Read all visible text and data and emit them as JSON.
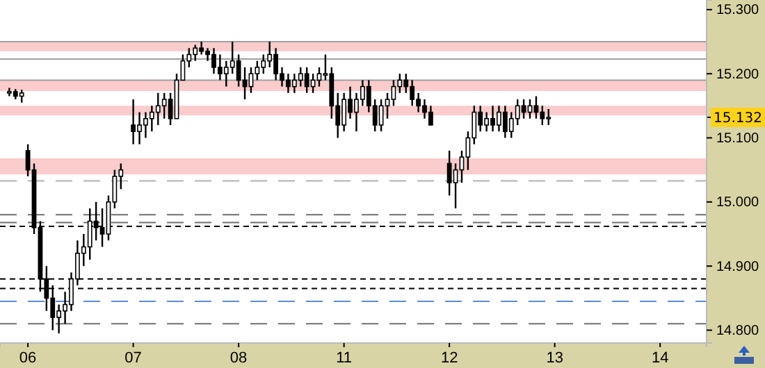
{
  "chart_data": {
    "type": "candlestick",
    "categories": [
      null,
      null,
      null,
      null,
      "06",
      null,
      null,
      null,
      null,
      null,
      null,
      null,
      null,
      null,
      null,
      null,
      null,
      null,
      null,
      null,
      null,
      "07",
      null,
      null,
      null,
      null,
      null,
      null,
      null,
      null,
      null,
      null,
      null,
      null,
      null,
      null,
      null,
      null,
      "08",
      null,
      null,
      null,
      null,
      null,
      null,
      null,
      null,
      null,
      null,
      null,
      null,
      null,
      null,
      null,
      null,
      "11",
      null,
      null,
      null,
      null,
      null,
      null,
      null,
      null,
      null,
      null,
      null,
      null,
      null,
      null,
      null,
      null,
      "12",
      null,
      null,
      null,
      null,
      null,
      null,
      null,
      null,
      null,
      null,
      null,
      null,
      null,
      null,
      null,
      null,
      "13",
      null,
      null,
      null,
      null,
      null,
      null,
      null,
      null,
      null,
      null,
      null,
      null,
      null,
      null,
      null,
      null,
      "14",
      null,
      null,
      null,
      null,
      null,
      null,
      null
    ],
    "ohlc": [
      null,
      [
        15.17,
        15.178,
        15.165,
        15.172
      ],
      [
        15.172,
        15.176,
        15.16,
        15.165
      ],
      [
        15.165,
        15.175,
        15.155,
        15.17
      ],
      [
        15.08,
        15.09,
        15.04,
        15.05
      ],
      [
        15.05,
        15.06,
        14.95,
        14.96
      ],
      [
        14.96,
        14.97,
        14.86,
        14.88
      ],
      [
        14.88,
        14.9,
        14.83,
        14.85
      ],
      [
        14.85,
        14.87,
        14.8,
        14.82
      ],
      [
        14.82,
        14.84,
        14.795,
        14.83
      ],
      [
        14.83,
        14.86,
        14.81,
        14.84
      ],
      [
        14.84,
        14.89,
        14.83,
        14.88
      ],
      [
        14.88,
        14.94,
        14.87,
        14.92
      ],
      [
        14.92,
        14.95,
        14.9,
        14.93
      ],
      [
        14.93,
        14.99,
        14.91,
        14.97
      ],
      [
        14.97,
        15.0,
        14.94,
        14.96
      ],
      [
        14.96,
        14.99,
        14.93,
        14.95
      ],
      [
        14.95,
        15.01,
        14.94,
        15.0
      ],
      [
        15.0,
        15.05,
        14.99,
        15.04
      ],
      [
        15.04,
        15.06,
        15.02,
        15.05
      ],
      null,
      [
        15.12,
        15.16,
        15.09,
        15.11
      ],
      [
        15.11,
        15.14,
        15.09,
        15.12
      ],
      [
        15.12,
        15.14,
        15.1,
        15.13
      ],
      [
        15.13,
        15.15,
        15.11,
        15.14
      ],
      [
        15.14,
        15.17,
        15.12,
        15.15
      ],
      [
        15.15,
        15.17,
        15.13,
        15.16
      ],
      [
        15.16,
        15.17,
        15.12,
        15.13
      ],
      [
        15.13,
        15.2,
        15.13,
        15.19
      ],
      [
        15.19,
        15.23,
        15.19,
        15.22
      ],
      [
        15.22,
        15.24,
        15.21,
        15.23
      ],
      [
        15.23,
        15.245,
        15.22,
        15.24
      ],
      [
        15.24,
        15.25,
        15.23,
        15.235
      ],
      [
        15.235,
        15.24,
        15.22,
        15.23
      ],
      [
        15.23,
        15.24,
        15.2,
        15.21
      ],
      [
        15.21,
        15.23,
        15.19,
        15.2
      ],
      [
        15.2,
        15.22,
        15.18,
        15.21
      ],
      [
        15.21,
        15.25,
        15.2,
        15.22
      ],
      [
        15.22,
        15.23,
        15.18,
        15.19
      ],
      [
        15.19,
        15.21,
        15.16,
        15.18
      ],
      [
        15.18,
        15.21,
        15.17,
        15.2
      ],
      [
        15.2,
        15.22,
        15.19,
        15.21
      ],
      [
        15.21,
        15.23,
        15.2,
        15.22
      ],
      [
        15.22,
        15.25,
        15.21,
        15.23
      ],
      [
        15.23,
        15.24,
        15.19,
        15.2
      ],
      [
        15.2,
        15.21,
        15.18,
        15.19
      ],
      [
        15.19,
        15.2,
        15.17,
        15.18
      ],
      [
        15.18,
        15.2,
        15.17,
        15.19
      ],
      [
        15.19,
        15.21,
        15.18,
        15.2
      ],
      [
        15.2,
        15.21,
        15.17,
        15.18
      ],
      [
        15.18,
        15.2,
        15.17,
        15.19
      ],
      [
        15.19,
        15.21,
        15.18,
        15.2
      ],
      [
        15.2,
        15.23,
        15.19,
        15.2
      ],
      [
        15.2,
        15.21,
        15.13,
        15.15
      ],
      [
        15.15,
        15.17,
        15.1,
        15.12
      ],
      [
        15.12,
        15.17,
        15.11,
        15.16
      ],
      [
        15.16,
        15.18,
        15.13,
        15.14
      ],
      [
        15.14,
        15.17,
        15.11,
        15.16
      ],
      [
        15.16,
        15.19,
        15.15,
        15.18
      ],
      [
        15.18,
        15.19,
        15.14,
        15.15
      ],
      [
        15.15,
        15.16,
        15.11,
        15.12
      ],
      [
        15.12,
        15.16,
        15.11,
        15.15
      ],
      [
        15.15,
        15.17,
        15.13,
        15.16
      ],
      [
        15.16,
        15.19,
        15.15,
        15.18
      ],
      [
        15.18,
        15.2,
        15.17,
        15.19
      ],
      [
        15.19,
        15.2,
        15.17,
        15.18
      ],
      [
        15.18,
        15.19,
        15.15,
        15.16
      ],
      [
        15.16,
        15.17,
        15.14,
        15.15
      ],
      [
        15.15,
        15.16,
        15.13,
        15.14
      ],
      [
        15.14,
        15.15,
        15.12,
        15.12
      ],
      null,
      null,
      [
        15.06,
        15.08,
        15.01,
        15.03
      ],
      [
        15.03,
        15.06,
        14.99,
        15.05
      ],
      [
        15.05,
        15.08,
        15.03,
        15.07
      ],
      [
        15.07,
        15.11,
        15.05,
        15.1
      ],
      [
        15.1,
        15.15,
        15.09,
        15.14
      ],
      [
        15.14,
        15.15,
        15.11,
        15.12
      ],
      [
        15.12,
        15.14,
        15.11,
        15.13
      ],
      [
        15.13,
        15.15,
        15.11,
        15.12
      ],
      [
        15.12,
        15.15,
        15.11,
        15.14
      ],
      [
        15.14,
        15.15,
        15.1,
        15.11
      ],
      [
        15.11,
        15.14,
        15.1,
        15.13
      ],
      [
        15.13,
        15.16,
        15.12,
        15.15
      ],
      [
        15.15,
        15.16,
        15.13,
        15.14
      ],
      [
        15.14,
        15.16,
        15.13,
        15.15
      ],
      [
        15.15,
        15.165,
        15.13,
        15.14
      ],
      [
        15.14,
        15.15,
        15.12,
        15.13
      ],
      [
        15.13,
        15.145,
        15.12,
        15.132
      ],
      null,
      null,
      null,
      null,
      null,
      null,
      null,
      null,
      null,
      null,
      null,
      null,
      null,
      null,
      null,
      null,
      null,
      null,
      null,
      null,
      null,
      null,
      null,
      null,
      null
    ],
    "color": "#000000",
    "ylim": [
      14.78,
      15.315
    ],
    "yticks": [
      {
        "value": 14.8,
        "label": "14.800"
      },
      {
        "value": 14.9,
        "label": "14.900"
      },
      {
        "value": 15.0,
        "label": "15.000"
      },
      {
        "value": 15.1,
        "label": "15.100"
      },
      {
        "value": 15.2,
        "label": "15.200"
      },
      {
        "value": 15.3,
        "label": "15.300"
      }
    ],
    "annotations": [
      "15.132"
    ],
    "ref_lines": [
      {
        "axis": "y",
        "value": 15.25,
        "color": "#a0a0a0",
        "line_style": "solid"
      },
      {
        "axis": "y",
        "value": 15.223,
        "color": "#a0a0a0",
        "line_style": "solid"
      },
      {
        "axis": "y",
        "value": 15.19,
        "color": "#a0a0a0",
        "line_style": "solid"
      },
      {
        "axis": "y",
        "value": 15.033,
        "color": "#b0b0b0",
        "line_style": "dashed"
      },
      {
        "axis": "y",
        "value": 14.98,
        "color": "#707070",
        "line_style": "dashed"
      },
      {
        "axis": "y",
        "value": 14.968,
        "color": "#707070",
        "line_style": "dashed"
      },
      {
        "axis": "y",
        "value": 14.962,
        "color": "#000000",
        "line_style": "dotted"
      },
      {
        "axis": "y",
        "value": 14.88,
        "color": "#000000",
        "line_style": "dotted"
      },
      {
        "axis": "y",
        "value": 14.865,
        "color": "#000000",
        "line_style": "dotted"
      },
      {
        "axis": "y",
        "value": 14.845,
        "color": "#5b8bd8",
        "line_style": "dashed"
      },
      {
        "axis": "y",
        "value": 14.81,
        "color": "#707070",
        "line_style": "dashed"
      }
    ],
    "bands": [
      {
        "axis": "y",
        "from": 15.235,
        "to": 15.25,
        "color": "#f59a9a"
      },
      {
        "axis": "y",
        "from": 15.173,
        "to": 15.19,
        "color": "#f59a9a"
      },
      {
        "axis": "y",
        "from": 15.043,
        "to": 15.068,
        "color": "#f59a9a"
      },
      {
        "axis": "y",
        "from": 15.135,
        "to": 15.15,
        "color": "#f59a9a"
      }
    ]
  }
}
